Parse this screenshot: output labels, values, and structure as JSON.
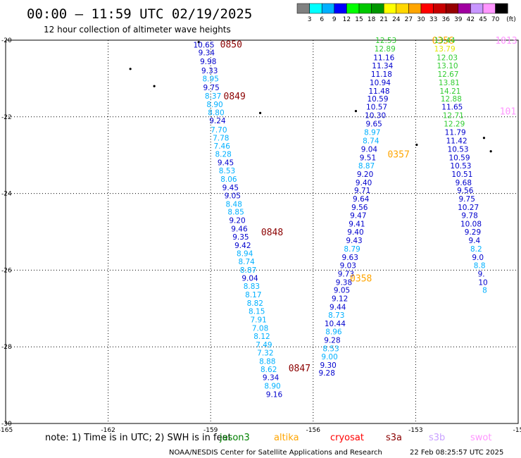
{
  "header": {
    "title": "00:00 – 11:59 UTC 02/19/2025",
    "subtitle": "12 hour collection of altimeter wave heights"
  },
  "legend_scale": {
    "unit": "(ft)",
    "bins": [
      {
        "label": "",
        "color": "#808080"
      },
      {
        "label": "3",
        "color": "#00ffff"
      },
      {
        "label": "6",
        "color": "#00b0ff"
      },
      {
        "label": "9",
        "color": "#0000ff"
      },
      {
        "label": "12",
        "color": "#00ff00"
      },
      {
        "label": "15",
        "color": "#00c800"
      },
      {
        "label": "18",
        "color": "#009600"
      },
      {
        "label": "21",
        "color": "#ffff00"
      },
      {
        "label": "24",
        "color": "#ffd700"
      },
      {
        "label": "27",
        "color": "#ffa500"
      },
      {
        "label": "30",
        "color": "#ff0000"
      },
      {
        "label": "33",
        "color": "#c80000"
      },
      {
        "label": "36",
        "color": "#960000"
      },
      {
        "label": "39",
        "color": "#a000a0"
      },
      {
        "label": "42",
        "color": "#c896ff"
      },
      {
        "label": "45",
        "color": "#ff96ff"
      },
      {
        "label": "70",
        "color": "#000000"
      }
    ]
  },
  "footer": {
    "note": "note: 1) Time is in UTC; 2) SWH is in feet",
    "satellites": [
      {
        "name": "jason3",
        "color": "#008000"
      },
      {
        "name": "altika",
        "color": "#ffa500"
      },
      {
        "name": "cryosat",
        "color": "#ff0000"
      },
      {
        "name": "s3a",
        "color": "#8b0000"
      },
      {
        "name": "s3b",
        "color": "#c8a0ff"
      },
      {
        "name": "swot",
        "color": "#ff96ff"
      }
    ],
    "credit": "NOAA/NESDIS Center for Satellite Applications and Research",
    "timestamp": "22 Feb 08:25:57 UTC 2025"
  },
  "chart_data": {
    "type": "scatter",
    "x_ticks": [
      "-165",
      "-162",
      "-159",
      "-156",
      "-153",
      "-15"
    ],
    "y_ticks": [
      "-20",
      "-22",
      "-24",
      "-26",
      "-28",
      "-30"
    ],
    "xlim": [
      -165,
      -150
    ],
    "ylim": [
      -30,
      -20
    ],
    "grid": true,
    "tracks": [
      {
        "color_key": "s3a",
        "pass_labels": [
          {
            "text": "0850",
            "lon": -158.4,
            "lat": -20.1
          },
          {
            "text": "0849",
            "lon": -158.3,
            "lat": -21.45
          },
          {
            "text": "0848",
            "lon": -157.2,
            "lat": -25.0
          },
          {
            "text": "0847",
            "lon": -156.4,
            "lat": -28.55
          }
        ],
        "points": [
          {
            "lon": -159.2,
            "lat": -20.12,
            "v": "10.65",
            "c": "#0000cd"
          },
          {
            "lon": -159.12,
            "lat": -20.32,
            "v": "9.34",
            "c": "#0000cd"
          },
          {
            "lon": -159.07,
            "lat": -20.55,
            "v": "9.98",
            "c": "#0000cd"
          },
          {
            "lon": -159.03,
            "lat": -20.79,
            "v": "9.33",
            "c": "#0000cd"
          },
          {
            "lon": -159.0,
            "lat": -21.0,
            "v": "8.95",
            "c": "#00b0ff"
          },
          {
            "lon": -158.98,
            "lat": -21.23,
            "v": "9.75",
            "c": "#0000cd"
          },
          {
            "lon": -158.93,
            "lat": -21.45,
            "v": "8.37",
            "c": "#00b0ff"
          },
          {
            "lon": -158.88,
            "lat": -21.67,
            "v": "8.90",
            "c": "#00b0ff"
          },
          {
            "lon": -158.84,
            "lat": -21.88,
            "v": "8.80",
            "c": "#00b0ff"
          },
          {
            "lon": -158.8,
            "lat": -22.1,
            "v": "9.24",
            "c": "#0000cd"
          },
          {
            "lon": -158.76,
            "lat": -22.33,
            "v": "7.70",
            "c": "#00b0ff"
          },
          {
            "lon": -158.7,
            "lat": -22.55,
            "v": "7.78",
            "c": "#00b0ff"
          },
          {
            "lon": -158.67,
            "lat": -22.76,
            "v": "7.46",
            "c": "#00b0ff"
          },
          {
            "lon": -158.63,
            "lat": -22.97,
            "v": "8.28",
            "c": "#00b0ff"
          },
          {
            "lon": -158.56,
            "lat": -23.19,
            "v": "9.45",
            "c": "#0000cd"
          },
          {
            "lon": -158.52,
            "lat": -23.4,
            "v": "8.53",
            "c": "#00b0ff"
          },
          {
            "lon": -158.47,
            "lat": -23.62,
            "v": "8.06",
            "c": "#00b0ff"
          },
          {
            "lon": -158.42,
            "lat": -23.84,
            "v": "9.45",
            "c": "#0000cd"
          },
          {
            "lon": -158.36,
            "lat": -24.05,
            "v": "9.05",
            "c": "#0000cd"
          },
          {
            "lon": -158.32,
            "lat": -24.27,
            "v": "8.48",
            "c": "#00b0ff"
          },
          {
            "lon": -158.26,
            "lat": -24.48,
            "v": "8.85",
            "c": "#00b0ff"
          },
          {
            "lon": -158.22,
            "lat": -24.7,
            "v": "9.20",
            "c": "#0000cd"
          },
          {
            "lon": -158.16,
            "lat": -24.92,
            "v": "9.46",
            "c": "#0000cd"
          },
          {
            "lon": -158.12,
            "lat": -25.13,
            "v": "9.35",
            "c": "#0000cd"
          },
          {
            "lon": -158.06,
            "lat": -25.35,
            "v": "9.42",
            "c": "#0000cd"
          },
          {
            "lon": -158.0,
            "lat": -25.56,
            "v": "8.94",
            "c": "#00b0ff"
          },
          {
            "lon": -157.95,
            "lat": -25.77,
            "v": "8.74",
            "c": "#00b0ff"
          },
          {
            "lon": -157.9,
            "lat": -25.99,
            "v": "8.87",
            "c": "#00b0ff"
          },
          {
            "lon": -157.85,
            "lat": -26.2,
            "v": "9.04",
            "c": "#0000cd"
          },
          {
            "lon": -157.8,
            "lat": -26.42,
            "v": "8.83",
            "c": "#00b0ff"
          },
          {
            "lon": -157.75,
            "lat": -26.64,
            "v": "8.17",
            "c": "#00b0ff"
          },
          {
            "lon": -157.7,
            "lat": -26.86,
            "v": "8.82",
            "c": "#00b0ff"
          },
          {
            "lon": -157.65,
            "lat": -27.07,
            "v": "8.15",
            "c": "#00b0ff"
          },
          {
            "lon": -157.6,
            "lat": -27.29,
            "v": "7.91",
            "c": "#00b0ff"
          },
          {
            "lon": -157.55,
            "lat": -27.51,
            "v": "7.08",
            "c": "#00b0ff"
          },
          {
            "lon": -157.5,
            "lat": -27.72,
            "v": "8.12",
            "c": "#00b0ff"
          },
          {
            "lon": -157.44,
            "lat": -27.94,
            "v": "7.49",
            "c": "#00b0ff"
          },
          {
            "lon": -157.4,
            "lat": -28.15,
            "v": "7.32",
            "c": "#00b0ff"
          },
          {
            "lon": -157.34,
            "lat": -28.37,
            "v": "8.88",
            "c": "#00b0ff"
          },
          {
            "lon": -157.3,
            "lat": -28.58,
            "v": "8.62",
            "c": "#00b0ff"
          },
          {
            "lon": -157.24,
            "lat": -28.8,
            "v": "9.34",
            "c": "#0000cd"
          },
          {
            "lon": -157.19,
            "lat": -29.02,
            "v": "8.90",
            "c": "#00b0ff"
          },
          {
            "lon": -157.14,
            "lat": -29.24,
            "v": "9.16",
            "c": "#0000cd"
          }
        ]
      },
      {
        "color_key": "altika",
        "pass_labels": [
          {
            "text": "0356",
            "lon": -152.2,
            "lat": -20.0
          },
          {
            "text": "0357",
            "lon": -153.5,
            "lat": -22.97
          },
          {
            "text": "0358",
            "lon": -154.6,
            "lat": -26.2
          }
        ],
        "points": [
          {
            "lon": -153.87,
            "lat": -20.0,
            "v": "12.53",
            "c": "#32cd32"
          },
          {
            "lon": -153.9,
            "lat": -20.22,
            "v": "12.89",
            "c": "#32cd32"
          },
          {
            "lon": -153.93,
            "lat": -20.45,
            "v": "11.16",
            "c": "#0000cd"
          },
          {
            "lon": -153.97,
            "lat": -20.66,
            "v": "11.34",
            "c": "#0000cd"
          },
          {
            "lon": -154.0,
            "lat": -20.88,
            "v": "11.18",
            "c": "#0000cd"
          },
          {
            "lon": -154.04,
            "lat": -21.1,
            "v": "10.94",
            "c": "#0000cd"
          },
          {
            "lon": -154.07,
            "lat": -21.32,
            "v": "11.48",
            "c": "#0000cd"
          },
          {
            "lon": -154.11,
            "lat": -21.53,
            "v": "10.59",
            "c": "#0000cd"
          },
          {
            "lon": -154.14,
            "lat": -21.74,
            "v": "10.57",
            "c": "#0000cd"
          },
          {
            "lon": -154.18,
            "lat": -21.96,
            "v": "10.30",
            "c": "#0000cd"
          },
          {
            "lon": -154.22,
            "lat": -22.18,
            "v": "9.65",
            "c": "#0000cd"
          },
          {
            "lon": -154.27,
            "lat": -22.4,
            "v": "8.97",
            "c": "#00b0ff"
          },
          {
            "lon": -154.31,
            "lat": -22.62,
            "v": "8.74",
            "c": "#00b0ff"
          },
          {
            "lon": -154.36,
            "lat": -22.84,
            "v": "9.04",
            "c": "#0000cd"
          },
          {
            "lon": -154.4,
            "lat": -23.06,
            "v": "9.51",
            "c": "#0000cd"
          },
          {
            "lon": -154.44,
            "lat": -23.27,
            "v": "8.87",
            "c": "#00b0ff"
          },
          {
            "lon": -154.48,
            "lat": -23.49,
            "v": "9.20",
            "c": "#0000cd"
          },
          {
            "lon": -154.52,
            "lat": -23.71,
            "v": "9.40",
            "c": "#0000cd"
          },
          {
            "lon": -154.56,
            "lat": -23.92,
            "v": "9.71",
            "c": "#0000cd"
          },
          {
            "lon": -154.6,
            "lat": -24.14,
            "v": "9.64",
            "c": "#0000cd"
          },
          {
            "lon": -154.64,
            "lat": -24.36,
            "v": "9.56",
            "c": "#0000cd"
          },
          {
            "lon": -154.68,
            "lat": -24.57,
            "v": "9.47",
            "c": "#0000cd"
          },
          {
            "lon": -154.72,
            "lat": -24.79,
            "v": "9.41",
            "c": "#0000cd"
          },
          {
            "lon": -154.76,
            "lat": -25.0,
            "v": "9.40",
            "c": "#0000cd"
          },
          {
            "lon": -154.8,
            "lat": -25.22,
            "v": "9.43",
            "c": "#0000cd"
          },
          {
            "lon": -154.86,
            "lat": -25.44,
            "v": "8.79",
            "c": "#00b0ff"
          },
          {
            "lon": -154.92,
            "lat": -25.66,
            "v": "9.63",
            "c": "#0000cd"
          },
          {
            "lon": -154.98,
            "lat": -25.87,
            "v": "9.03",
            "c": "#0000cd"
          },
          {
            "lon": -155.04,
            "lat": -26.09,
            "v": "9.73",
            "c": "#0000cd"
          },
          {
            "lon": -155.1,
            "lat": -26.31,
            "v": "9.38",
            "c": "#0000cd"
          },
          {
            "lon": -155.16,
            "lat": -26.52,
            "v": "9.05",
            "c": "#0000cd"
          },
          {
            "lon": -155.22,
            "lat": -26.74,
            "v": "9.12",
            "c": "#0000cd"
          },
          {
            "lon": -155.28,
            "lat": -26.96,
            "v": "9.44",
            "c": "#0000cd"
          },
          {
            "lon": -155.32,
            "lat": -27.17,
            "v": "8.73",
            "c": "#00b0ff"
          },
          {
            "lon": -155.36,
            "lat": -27.39,
            "v": "10.44",
            "c": "#0000cd"
          },
          {
            "lon": -155.4,
            "lat": -27.6,
            "v": "8.96",
            "c": "#00b0ff"
          },
          {
            "lon": -155.44,
            "lat": -27.82,
            "v": "9.28",
            "c": "#0000cd"
          },
          {
            "lon": -155.48,
            "lat": -28.04,
            "v": "8.53",
            "c": "#00b0ff"
          },
          {
            "lon": -155.52,
            "lat": -28.25,
            "v": "9.00",
            "c": "#00b0ff"
          },
          {
            "lon": -155.56,
            "lat": -28.47,
            "v": "9.30",
            "c": "#0000cd"
          },
          {
            "lon": -155.6,
            "lat": -28.68,
            "v": "9.28",
            "c": "#0000cd"
          }
        ]
      },
      {
        "color_key": "swot",
        "pass_labels": [
          {
            "text": "1013",
            "lon": -150.35,
            "lat": -20.0
          },
          {
            "text": "101",
            "lon": -150.3,
            "lat": -21.85
          }
        ],
        "points": [
          {
            "lon": -152.15,
            "lat": -20.0,
            "v": "13.44",
            "c": "#32cd32"
          },
          {
            "lon": -152.15,
            "lat": -20.22,
            "v": "13.79",
            "c": "#e6e600"
          },
          {
            "lon": -152.08,
            "lat": -20.45,
            "v": "12.03",
            "c": "#32cd32"
          },
          {
            "lon": -152.07,
            "lat": -20.66,
            "v": "13.10",
            "c": "#32cd32"
          },
          {
            "lon": -152.05,
            "lat": -20.88,
            "v": "12.67",
            "c": "#32cd32"
          },
          {
            "lon": -152.02,
            "lat": -21.1,
            "v": "13.81",
            "c": "#32cd32"
          },
          {
            "lon": -151.99,
            "lat": -21.32,
            "v": "14.21",
            "c": "#32cd32"
          },
          {
            "lon": -151.96,
            "lat": -21.53,
            "v": "12.88",
            "c": "#32cd32"
          },
          {
            "lon": -151.93,
            "lat": -21.74,
            "v": "11.65",
            "c": "#0000cd"
          },
          {
            "lon": -151.9,
            "lat": -21.96,
            "v": "12.71",
            "c": "#32cd32"
          },
          {
            "lon": -151.87,
            "lat": -22.18,
            "v": "12.29",
            "c": "#32cd32"
          },
          {
            "lon": -151.84,
            "lat": -22.4,
            "v": "11.79",
            "c": "#0000cd"
          },
          {
            "lon": -151.8,
            "lat": -22.62,
            "v": "11.42",
            "c": "#0000cd"
          },
          {
            "lon": -151.76,
            "lat": -22.84,
            "v": "10.53",
            "c": "#0000cd"
          },
          {
            "lon": -151.72,
            "lat": -23.06,
            "v": "10.59",
            "c": "#0000cd"
          },
          {
            "lon": -151.68,
            "lat": -23.27,
            "v": "10.53",
            "c": "#0000cd"
          },
          {
            "lon": -151.64,
            "lat": -23.49,
            "v": "10.51",
            "c": "#0000cd"
          },
          {
            "lon": -151.6,
            "lat": -23.71,
            "v": "9.68",
            "c": "#0000cd"
          },
          {
            "lon": -151.55,
            "lat": -23.92,
            "v": "9.56",
            "c": "#0000cd"
          },
          {
            "lon": -151.5,
            "lat": -24.14,
            "v": "9.75",
            "c": "#0000cd"
          },
          {
            "lon": -151.46,
            "lat": -24.36,
            "v": "10.27",
            "c": "#0000cd"
          },
          {
            "lon": -151.42,
            "lat": -24.57,
            "v": "9.78",
            "c": "#0000cd"
          },
          {
            "lon": -151.38,
            "lat": -24.79,
            "v": "10.08",
            "c": "#0000cd"
          },
          {
            "lon": -151.33,
            "lat": -25.0,
            "v": "9.29",
            "c": "#0000cd"
          },
          {
            "lon": -151.28,
            "lat": -25.22,
            "v": "9.4",
            "c": "#0000cd"
          },
          {
            "lon": -151.23,
            "lat": -25.44,
            "v": "8.2",
            "c": "#00b0ff"
          },
          {
            "lon": -151.18,
            "lat": -25.66,
            "v": "9.0",
            "c": "#0000cd"
          },
          {
            "lon": -151.13,
            "lat": -25.87,
            "v": "8.8",
            "c": "#00b0ff"
          },
          {
            "lon": -151.08,
            "lat": -26.09,
            "v": "9.",
            "c": "#0000cd"
          },
          {
            "lon": -151.03,
            "lat": -26.31,
            "v": "10",
            "c": "#0000cd"
          },
          {
            "lon": -150.98,
            "lat": -26.52,
            "v": "8",
            "c": "#00b0ff"
          }
        ]
      }
    ],
    "land": [
      {
        "lon": -159.35,
        "lat": -20.05
      },
      {
        "lon": -161.35,
        "lat": -20.75
      },
      {
        "lon": -160.65,
        "lat": -21.2
      },
      {
        "lon": -157.55,
        "lat": -21.9
      },
      {
        "lon": -154.75,
        "lat": -21.85
      },
      {
        "lon": -152.97,
        "lat": -22.73
      },
      {
        "lon": -151.0,
        "lat": -22.55
      },
      {
        "lon": -150.8,
        "lat": -22.9
      }
    ]
  }
}
